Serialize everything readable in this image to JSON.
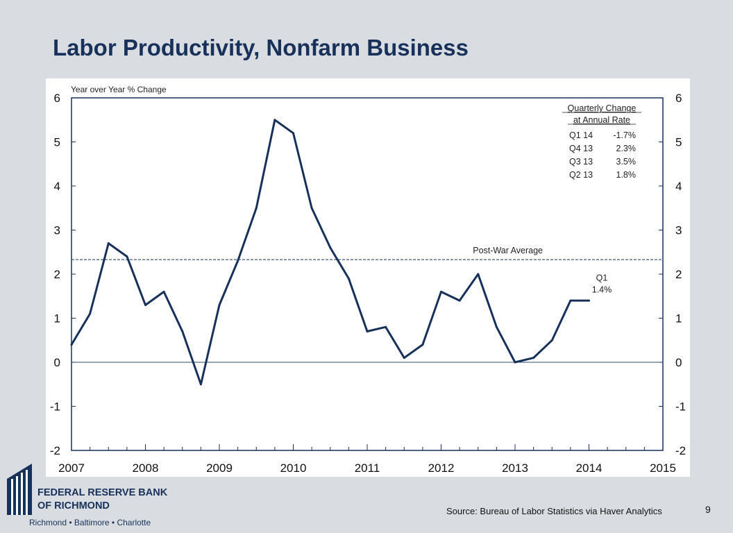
{
  "slide": {
    "title": "Labor Productivity, Nonfarm Business",
    "source": "Source: Bureau of Labor Statistics via Haver Analytics",
    "page_number": "9"
  },
  "logo": {
    "line1": "FEDERAL RESERVE BANK",
    "line2": "OF RICHMOND",
    "cities": "Richmond • Baltimore • Charlotte"
  },
  "colors": {
    "background": "#d9dde1",
    "series": "#18315a",
    "title": "#18315a"
  },
  "chart_data": {
    "type": "line",
    "ylabel": "Year over Year % Change",
    "ylim": [
      -2,
      6
    ],
    "y_ticks": [
      "-2",
      "-1",
      "0",
      "1",
      "2",
      "3",
      "4",
      "5",
      "6"
    ],
    "xlim": [
      2007,
      2015
    ],
    "x_ticks": [
      "2007",
      "2008",
      "2009",
      "2010",
      "2011",
      "2012",
      "2013",
      "2014",
      "2015"
    ],
    "grid": false,
    "zero_line": 0,
    "series": [
      {
        "name": "",
        "x": [
          2007.0,
          2007.25,
          2007.5,
          2007.75,
          2008.0,
          2008.25,
          2008.5,
          2008.75,
          2009.0,
          2009.25,
          2009.5,
          2009.75,
          2010.0,
          2010.25,
          2010.5,
          2010.75,
          2011.0,
          2011.25,
          2011.5,
          2011.75,
          2012.0,
          2012.25,
          2012.5,
          2012.75,
          2013.0,
          2013.25,
          2013.5,
          2013.75,
          2014.0
        ],
        "values": [
          0.4,
          1.1,
          2.7,
          2.4,
          1.3,
          1.6,
          0.7,
          -0.5,
          1.3,
          2.3,
          3.5,
          5.5,
          5.2,
          3.5,
          2.6,
          1.9,
          0.7,
          0.8,
          0.1,
          0.4,
          1.6,
          1.4,
          2.0,
          0.8,
          0.0,
          0.1,
          0.5,
          1.4,
          1.4
        ]
      }
    ],
    "reference_line": {
      "label": "Post-War Average",
      "value": 2.33
    },
    "annotation": {
      "line1": "Q1",
      "line2": "1.4%"
    },
    "inset_table": {
      "title_line1": "Quarterly Change",
      "title_line2": "at Annual Rate",
      "rows": [
        {
          "quarter": "Q1 14",
          "value": "-1.7%"
        },
        {
          "quarter": "Q4 13",
          "value": "2.3%"
        },
        {
          "quarter": "Q3 13",
          "value": "3.5%"
        },
        {
          "quarter": "Q2 13",
          "value": "1.8%"
        }
      ]
    }
  }
}
